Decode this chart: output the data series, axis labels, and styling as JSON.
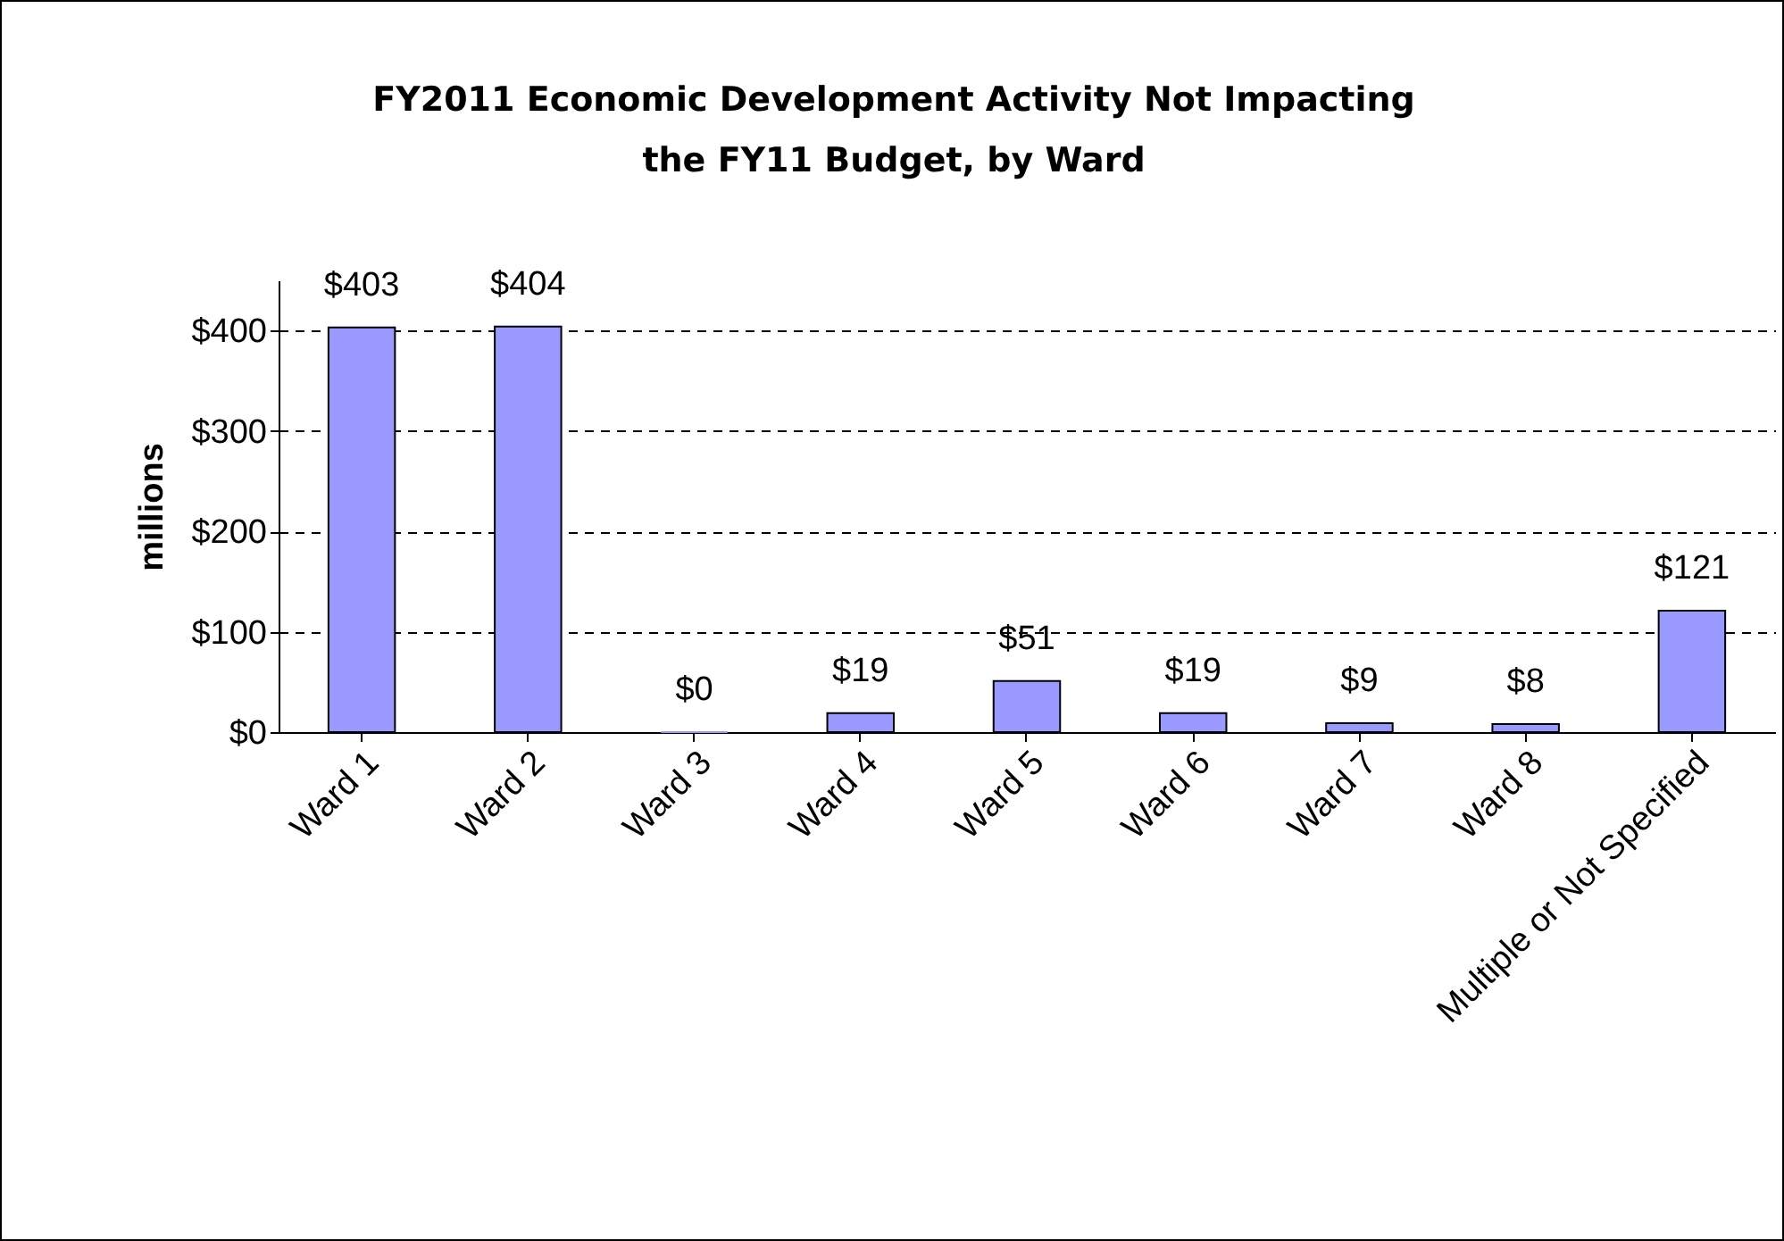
{
  "chart_data": {
    "type": "bar",
    "title": "FY2011 Economic Development Activity Not Impacting the FY11 Budget, by Ward",
    "ylabel": "millions",
    "categories": [
      "Ward 1",
      "Ward 2",
      "Ward 3",
      "Ward 4",
      "Ward 5",
      "Ward 6",
      "Ward 7",
      "Ward 8",
      "Multiple or Not Specified"
    ],
    "values": [
      403,
      404,
      0,
      19,
      51,
      19,
      9,
      8,
      121
    ],
    "value_labels": [
      "$403",
      "$404",
      "$0",
      "$19",
      "$51",
      "$19",
      "$9",
      "$8",
      "$121"
    ],
    "color": "#9999ff",
    "ylim": [
      0,
      450
    ],
    "yticks": [
      {
        "value": 0,
        "label": "$0"
      },
      {
        "value": 100,
        "label": "$100"
      },
      {
        "value": 200,
        "label": "$200"
      },
      {
        "value": 300,
        "label": "$300"
      },
      {
        "value": 400,
        "label": "$400"
      }
    ],
    "grid": "y",
    "legend": false
  }
}
